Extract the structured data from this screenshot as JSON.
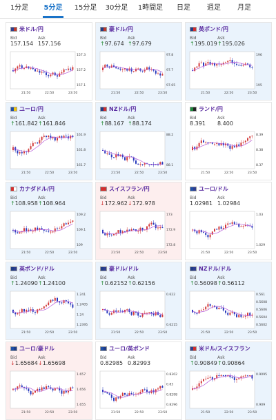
{
  "tabs": [
    "1分足",
    "5分足",
    "15分足",
    "30分足",
    "1時間足",
    "日足",
    "週足",
    "月足"
  ],
  "active_tab": 1,
  "time_labels": [
    "21:50",
    "22:50",
    "23:50"
  ],
  "pairs": [
    {
      "name": "米ドル/円",
      "bid": "157.154",
      "ask": "157.156",
      "dir": "",
      "ticks": [
        "157.3",
        "157.2",
        "157.1"
      ],
      "tone": "flat",
      "flag": [
        "#2f3e8f",
        "#c0392b"
      ]
    },
    {
      "name": "豪ドル/円",
      "bid": "97.674",
      "ask": "97.679",
      "dir": "↑",
      "ticks": [
        "97.8",
        "97.7",
        "97.65"
      ],
      "tone": "up",
      "flag": [
        "#1f3c88",
        "#c0392b"
      ]
    },
    {
      "name": "英ポンド/円",
      "bid": "195.019",
      "ask": "195.026",
      "dir": "↑",
      "ticks": [
        "196",
        "195"
      ],
      "tone": "up",
      "flag": [
        "#1f3c88",
        "#d32f2f"
      ]
    },
    {
      "name": "ユーロ/円",
      "bid": "161.842",
      "ask": "161.846",
      "dir": "↑",
      "ticks": [
        "161.9",
        "161.8",
        "161.7"
      ],
      "tone": "up",
      "flag": [
        "#1f4fa8",
        "#f1c40f"
      ]
    },
    {
      "name": "NZドル/円",
      "bid": "88.167",
      "ask": "88.174",
      "dir": "↑",
      "ticks": [
        "88.2",
        "88.1"
      ],
      "tone": "up",
      "flag": [
        "#1f3c88",
        "#d32f2f"
      ]
    },
    {
      "name": "ランド/円",
      "bid": "8.391",
      "ask": "8.400",
      "dir": "",
      "ticks": [
        "8.39",
        "8.38",
        "8.37"
      ],
      "tone": "flat",
      "flag": [
        "#1e8b3d",
        "#222222"
      ]
    },
    {
      "name": "カナダドル/円",
      "bid": "108.958",
      "ask": "108.964",
      "dir": "↑",
      "ticks": [
        "109.2",
        "109.1",
        "109"
      ],
      "tone": "up",
      "flag": [
        "#d32f2f",
        "#ffffff"
      ]
    },
    {
      "name": "スイスフラン/円",
      "bid": "172.962",
      "ask": "172.978",
      "dir": "↓",
      "ticks": [
        "173",
        "172.9",
        "172.8"
      ],
      "tone": "down",
      "flag": [
        "#d32f2f",
        "#d32f2f"
      ]
    },
    {
      "name": "ユーロ/ドル",
      "bid": "1.02981",
      "ask": "1.02984",
      "dir": "",
      "ticks": [
        "1.03",
        "1.029"
      ],
      "tone": "flat",
      "flag": [
        "#1f4fa8",
        "#2f3e8f"
      ]
    },
    {
      "name": "英ポンド/ドル",
      "bid": "1.24090",
      "ask": "1.24100",
      "dir": "↑",
      "ticks": [
        "1.241",
        "1.2405",
        "1.24",
        "1.2395"
      ],
      "tone": "up",
      "flag": [
        "#1f3c88",
        "#2f3e8f"
      ]
    },
    {
      "name": "豪ドル/ドル",
      "bid": "0.62152",
      "ask": "0.62156",
      "dir": "↑",
      "ticks": [
        "0.622",
        "0.6215"
      ],
      "tone": "up",
      "flag": [
        "#1f3c88",
        "#2f3e8f"
      ]
    },
    {
      "name": "NZドル/ドル",
      "bid": "0.56098",
      "ask": "0.56112",
      "dir": "↑",
      "ticks": [
        "0.561",
        "0.5608",
        "0.5606",
        "0.5604",
        "0.5602"
      ],
      "tone": "up",
      "flag": [
        "#1f3c88",
        "#2f3e8f"
      ]
    },
    {
      "name": "ユーロ/豪ドル",
      "bid": "1.65684",
      "ask": "1.65698",
      "dir": "↓",
      "ticks": [
        "1.657",
        "1.656",
        "1.655"
      ],
      "tone": "down",
      "flag": [
        "#1f4fa8",
        "#1f3c88"
      ]
    },
    {
      "name": "ユーロ/英ポンド",
      "bid": "0.82985",
      "ask": "0.82993",
      "dir": "",
      "ticks": [
        "0.8302",
        "0.83",
        "0.8298",
        "0.8296"
      ],
      "tone": "flat",
      "flag": [
        "#1f4fa8",
        "#1f3c88"
      ]
    },
    {
      "name": "米ドル/スイスフラン",
      "bid": "0.90849",
      "ask": "0.90864",
      "dir": "↑",
      "ticks": [
        "0.9095",
        "0.909"
      ],
      "tone": "up",
      "flag": [
        "#2f3e8f",
        "#d32f2f"
      ]
    }
  ],
  "bid_label": "Bid",
  "ask_label": "Ask",
  "colors": {
    "up_candle": "#d33b3b",
    "down_candle": "#2a3bbd",
    "ma": "#b65ad8",
    "accent": "#1a73c8"
  }
}
